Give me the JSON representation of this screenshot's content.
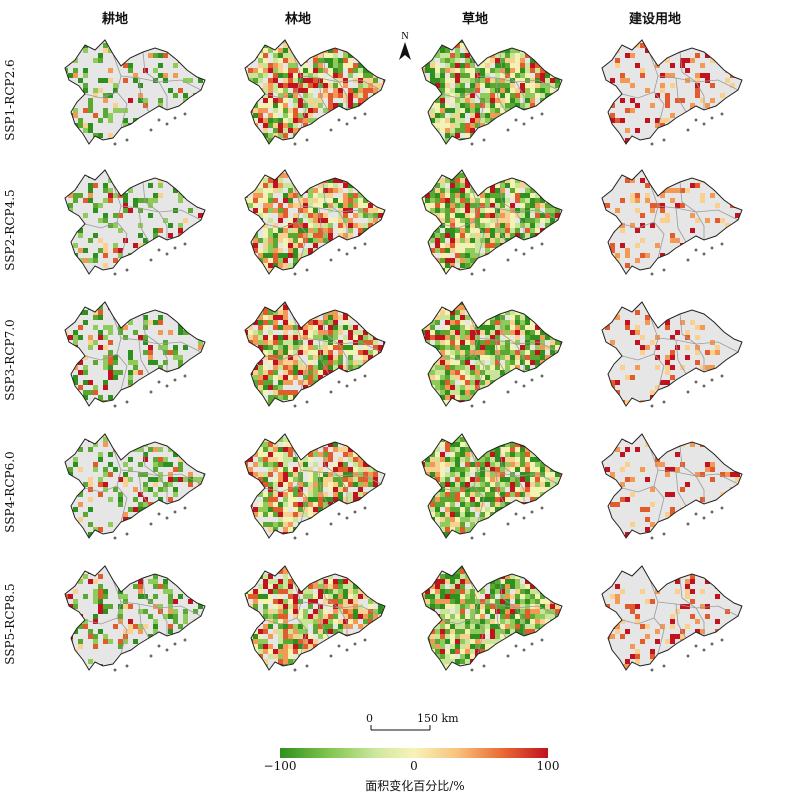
{
  "columns": [
    "耕地",
    "林地",
    "草地",
    "建设用地"
  ],
  "rows": [
    "SSP1-RCP2.6",
    "SSP2-RCP4.5",
    "SSP3-RCP7.0",
    "SSP4-RCP6.0",
    "SSP5-RCP8.5"
  ],
  "north_label": "N",
  "scale_bar": {
    "start": "0",
    "end": "150 km"
  },
  "legend": {
    "title": "面积变化百分比/%",
    "min_label": "−100",
    "mid_label": "0",
    "max_label": "100",
    "min": -100,
    "max": 100,
    "colors": [
      "#2f8f1f",
      "#7cc24a",
      "#cfe8a0",
      "#f7f3b8",
      "#f9c27d",
      "#ea6a34",
      "#c1121f"
    ]
  },
  "colors": {
    "base_fill": "#e6e6e6",
    "outline": "#222222",
    "inner_boundary": "#9a9a9a"
  }
}
